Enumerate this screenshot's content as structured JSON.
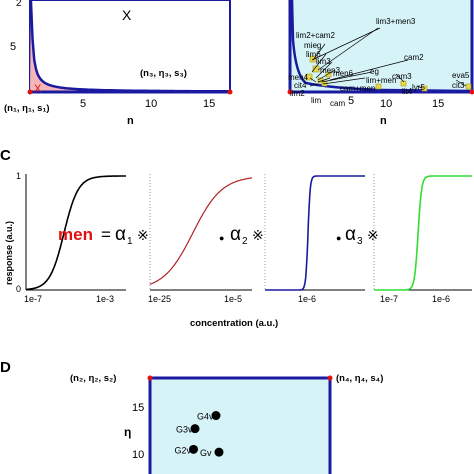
{
  "panelA": {
    "x_label": "n",
    "x_ticks": [
      "5",
      "10",
      "15"
    ],
    "y_ticks": [
      "5"
    ],
    "corner_top": "2",
    "region_marker": "X",
    "corner_left": "(n₁, η₁, s₁)",
    "corner_right": "(n₃, η₃, s₃)"
  },
  "panelB": {
    "x_label": "n",
    "x_ticks": [
      "5",
      "10",
      "15"
    ],
    "combos": [
      "lim3+men3",
      "lim2+cam2",
      "mieg",
      "lim6",
      "lim3",
      "cam2",
      "men3",
      "men6",
      "eg",
      "cam3",
      "men4",
      "lim+men",
      "cit4",
      "lim2",
      "cam+men",
      "lyr5",
      "eva5",
      "cit3",
      "lim",
      "cam",
      "lit4"
    ]
  },
  "panelC": {
    "label": "C",
    "y_label": "response (a.u.)",
    "y_ticks": [
      "1",
      "0"
    ],
    "x_label": "concentration (a.u.)",
    "equation": {
      "lhs": "men",
      "eq": "=",
      "alpha": "α",
      "subs": [
        "1",
        "2",
        "3"
      ],
      "op": "※",
      "dot": "●"
    }
  },
  "panelD": {
    "label": "D",
    "y_label": "η",
    "corner_left": "(n₂, η₂, s₂)",
    "corner_right": "(n₄, η₄, s₄)",
    "y_ticks": [
      "15",
      "10"
    ],
    "points": [
      {
        "label": "G4v",
        "eta": 14.2
      },
      {
        "label": "G3v",
        "eta": 12.8
      },
      {
        "label": "G2v",
        "eta": 10.6
      },
      {
        "label": "Gv",
        "eta": 10.3
      }
    ]
  },
  "chart_data": [
    {
      "type": "line",
      "panel": "A",
      "xlabel": "n",
      "xlim": [
        0,
        18
      ],
      "ylim": [
        0,
        12
      ],
      "series": [
        {
          "x": [
            0.1,
            0.4,
            1,
            2,
            4,
            8,
            12,
            18
          ],
          "y": [
            12,
            4,
            1.6,
            0.8,
            0.4,
            0.2,
            0.13,
            0.09
          ]
        }
      ]
    },
    {
      "type": "line",
      "panel": "B",
      "xlabel": "n",
      "xlim": [
        0,
        18
      ],
      "ylim": [
        0,
        12
      ]
    },
    {
      "type": "line",
      "panel": "C",
      "ylabel": "response (a.u.)",
      "xlabel": "concentration (a.u.)",
      "ylim": [
        0,
        1
      ],
      "subplots": [
        {
          "xticks": [
            "1e-7",
            "1e-3"
          ],
          "color": "#000000",
          "midpoint": 0.38,
          "steepness": 14
        },
        {
          "xticks": [
            "1e-25",
            "1e-5"
          ],
          "color": "#b22222",
          "midpoint": 0.42,
          "steepness": 7
        },
        {
          "xticks": [
            "1e-6"
          ],
          "color": "#1a1aa0",
          "midpoint": 0.43,
          "steepness": 90
        },
        {
          "xticks": [
            "1e-7",
            "1e-6"
          ],
          "color": "#33dd33",
          "midpoint": 0.45,
          "steepness": 55
        }
      ]
    },
    {
      "type": "scatter",
      "panel": "D",
      "ylabel": "η",
      "ylim": [
        9,
        17
      ],
      "points": [
        {
          "label": "G4v",
          "x": 2.2,
          "y": 14.2
        },
        {
          "label": "G3v",
          "x": 0.8,
          "y": 12.8
        },
        {
          "label": "G2v",
          "x": 0.7,
          "y": 10.6
        },
        {
          "label": "Gv",
          "x": 2.4,
          "y": 10.3
        }
      ]
    }
  ]
}
